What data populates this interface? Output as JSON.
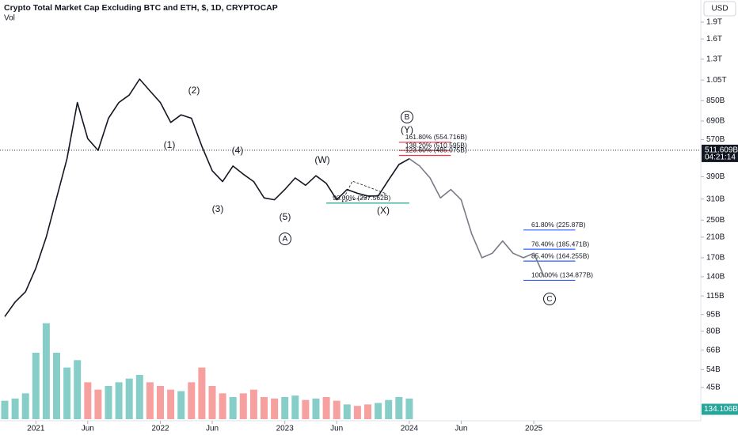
{
  "chart_data": {
    "type": "line",
    "title": "Crypto Total Market Cap Excluding BTC and ETH, $, 1D, CRYPTOCAP",
    "indicator": "Vol",
    "currency": "USD",
    "log_scale": true,
    "ylim": [
      32,
      2384
    ],
    "yticks": [
      {
        "value": 1900,
        "label": "1.9T"
      },
      {
        "value": 1600,
        "label": "1.6T"
      },
      {
        "value": 1300,
        "label": "1.3T"
      },
      {
        "value": 1050,
        "label": "1.05T"
      },
      {
        "value": 850,
        "label": "850B"
      },
      {
        "value": 690,
        "label": "690B"
      },
      {
        "value": 570,
        "label": "570B"
      },
      {
        "value": 390,
        "label": "390B"
      },
      {
        "value": 310,
        "label": "310B"
      },
      {
        "value": 250,
        "label": "250B"
      },
      {
        "value": 210,
        "label": "210B"
      },
      {
        "value": 170,
        "label": "170B"
      },
      {
        "value": 140,
        "label": "140B"
      },
      {
        "value": 115,
        "label": "115B"
      },
      {
        "value": 95,
        "label": "95B"
      },
      {
        "value": 80,
        "label": "80B"
      },
      {
        "value": 66,
        "label": "66B"
      },
      {
        "value": 54,
        "label": "54B"
      },
      {
        "value": 45,
        "label": "45B"
      }
    ],
    "xticks": [
      {
        "value": "2021-01",
        "label": "2021"
      },
      {
        "value": "2021-06",
        "label": "Jun"
      },
      {
        "value": "2022-01",
        "label": "2022"
      },
      {
        "value": "2022-06",
        "label": "Jun"
      },
      {
        "value": "2023-01",
        "label": "2023"
      },
      {
        "value": "2023-06",
        "label": "Jun"
      },
      {
        "value": "2024-01",
        "label": "2024"
      },
      {
        "value": "2024-06",
        "label": "Jun"
      },
      {
        "value": "2025-01",
        "label": "2025"
      }
    ],
    "x": [
      "2020-10",
      "2020-11",
      "2020-12",
      "2021-01",
      "2021-02",
      "2021-03",
      "2021-04",
      "2021-05",
      "2021-06",
      "2021-07",
      "2021-08",
      "2021-09",
      "2021-10",
      "2021-11",
      "2021-12",
      "2022-01",
      "2022-02",
      "2022-03",
      "2022-04",
      "2022-05",
      "2022-06",
      "2022-07",
      "2022-08",
      "2022-09",
      "2022-10",
      "2022-11",
      "2022-12",
      "2023-01",
      "2023-02",
      "2023-03",
      "2023-04",
      "2023-05",
      "2023-06",
      "2023-07",
      "2023-08",
      "2023-09",
      "2023-10",
      "2023-11",
      "2023-12",
      "2024-01",
      "2024-02",
      "2024-03",
      "2024-04",
      "2024-05",
      "2024-06",
      "2024-07",
      "2024-08",
      "2024-09",
      "2024-10",
      "2024-11",
      "2024-12",
      "2025-01",
      "2025-02"
    ],
    "series": [
      {
        "color": "#131722",
        "values": [
          93,
          108,
          120,
          153,
          210,
          314,
          469,
          834,
          576,
          511,
          710,
          834,
          900,
          1060,
          939,
          834,
          680,
          735,
          710,
          533,
          415,
          371,
          435,
          400,
          371,
          314,
          308,
          342,
          385,
          357,
          394,
          364,
          308,
          342,
          329,
          320,
          320,
          377,
          442,
          469,
          null,
          null,
          null,
          null,
          null,
          null,
          null,
          null,
          null,
          null,
          null,
          null,
          null
        ]
      },
      {
        "color": "#787b86",
        "values": [
          null,
          null,
          null,
          null,
          null,
          null,
          null,
          null,
          null,
          null,
          null,
          null,
          null,
          null,
          null,
          null,
          null,
          null,
          null,
          null,
          null,
          null,
          null,
          null,
          null,
          null,
          null,
          null,
          null,
          null,
          null,
          null,
          null,
          null,
          null,
          null,
          null,
          null,
          null,
          469,
          435,
          385,
          314,
          342,
          308,
          218,
          170,
          178,
          202,
          178,
          170,
          178,
          140
        ]
      }
    ],
    "volume": {
      "vlim": [
        0,
        1500
      ],
      "up_color": "#26a69a",
      "down_color": "#ef5350",
      "values": [
        250,
        280,
        350,
        900,
        1300,
        900,
        700,
        800,
        500,
        400,
        450,
        500,
        550,
        600,
        500,
        450,
        400,
        380,
        500,
        700,
        450,
        350,
        300,
        350,
        400,
        300,
        280,
        300,
        320,
        260,
        280,
        300,
        250,
        200,
        180,
        200,
        220,
        260,
        300,
        280,
        null,
        null,
        null,
        null,
        null,
        null,
        null,
        null,
        null,
        null,
        null,
        null,
        null
      ],
      "last": {
        "value": 134.106,
        "label": "134.106B"
      }
    },
    "last_price": {
      "value": 511.609,
      "label": "511.609B"
    },
    "countdown": "04:21:14",
    "fib_levels": [
      {
        "value": 554.716,
        "label": "161.80% (554.716B)",
        "color": "#f23645",
        "from": "2023-12",
        "to": "2024-05"
      },
      {
        "value": 510.595,
        "label": "138.20% (510.595B)",
        "color": "#f23645",
        "from": "2023-12",
        "to": "2024-05"
      },
      {
        "value": 485.075,
        "label": "123.60% (485.075B)",
        "color": "#f23645",
        "from": "2023-12",
        "to": "2024-05"
      },
      {
        "value": 297.562,
        "label": "90.00% (297.562B)",
        "color": "#089981",
        "from": "2023-05",
        "to": "2024-01"
      },
      {
        "value": 225.87,
        "label": "61.80% (225.87B)",
        "color": "#2962ff",
        "from": "2024-12",
        "to": "2025-05"
      },
      {
        "value": 185.471,
        "label": "76.40% (185.471B)",
        "color": "#2962ff",
        "from": "2024-12",
        "to": "2025-05"
      },
      {
        "value": 164.255,
        "label": "85.40% (164.255B)",
        "color": "#2962ff",
        "from": "2024-12",
        "to": "2025-05"
      },
      {
        "value": 134.877,
        "label": "100.00% (134.877B)",
        "color": "#2962ff",
        "from": "2024-12",
        "to": "2025-05"
      }
    ],
    "annotations": [
      "(1)",
      "(2)",
      "(3)",
      "(4)",
      "(5)",
      "(W)",
      "(X)",
      "(Y)",
      "B",
      "A",
      "C"
    ]
  }
}
